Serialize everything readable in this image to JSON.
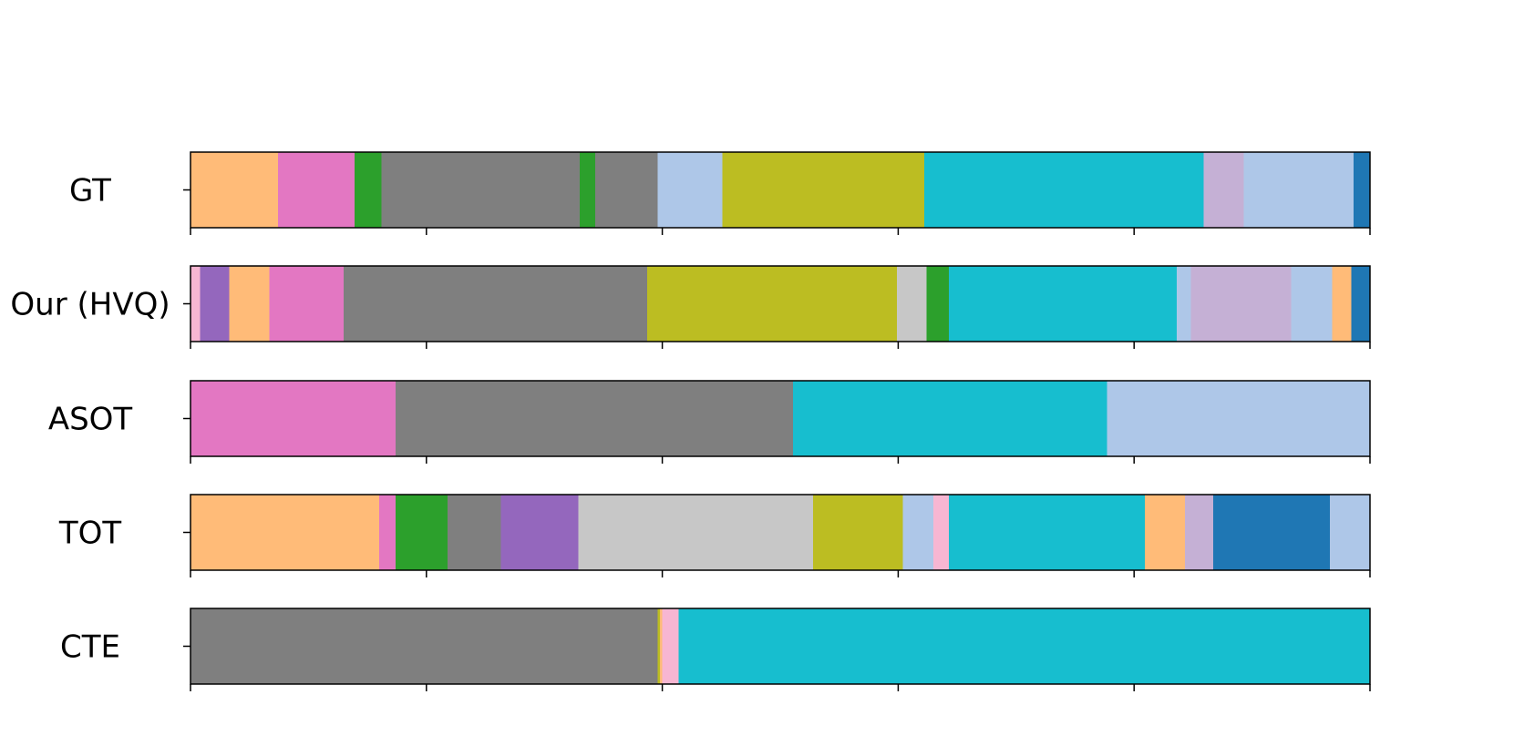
{
  "chart_data": {
    "type": "bar",
    "orientation": "horizontal-stacked-segments",
    "xlim": [
      0,
      100
    ],
    "grid": false,
    "legend": "none",
    "rows": [
      {
        "label": "GT",
        "segments": [
          {
            "start": 0.0,
            "end": 7.4,
            "color": "#ffbb78"
          },
          {
            "start": 7.4,
            "end": 13.9,
            "color": "#e377c2"
          },
          {
            "start": 13.9,
            "end": 16.2,
            "color": "#2ca02c"
          },
          {
            "start": 16.2,
            "end": 33.0,
            "color": "#7f7f7f"
          },
          {
            "start": 33.0,
            "end": 34.3,
            "color": "#2ca02c"
          },
          {
            "start": 34.3,
            "end": 39.6,
            "color": "#7f7f7f"
          },
          {
            "start": 39.6,
            "end": 45.1,
            "color": "#aec7e8"
          },
          {
            "start": 45.1,
            "end": 62.2,
            "color": "#bcbd22"
          },
          {
            "start": 62.2,
            "end": 85.9,
            "color": "#17becf"
          },
          {
            "start": 85.9,
            "end": 89.3,
            "color": "#c5b0d5"
          },
          {
            "start": 89.3,
            "end": 98.6,
            "color": "#aec7e8"
          },
          {
            "start": 98.6,
            "end": 100.0,
            "color": "#1f77b4"
          }
        ]
      },
      {
        "label": "Our (HVQ)",
        "segments": [
          {
            "start": 0.0,
            "end": 0.8,
            "color": "#f7b6d2"
          },
          {
            "start": 0.8,
            "end": 3.3,
            "color": "#9467bd"
          },
          {
            "start": 3.3,
            "end": 6.7,
            "color": "#ffbb78"
          },
          {
            "start": 6.7,
            "end": 13.0,
            "color": "#e377c2"
          },
          {
            "start": 13.0,
            "end": 38.7,
            "color": "#7f7f7f"
          },
          {
            "start": 38.7,
            "end": 59.9,
            "color": "#bcbd22"
          },
          {
            "start": 59.9,
            "end": 62.4,
            "color": "#c7c7c7"
          },
          {
            "start": 62.4,
            "end": 64.3,
            "color": "#2ca02c"
          },
          {
            "start": 64.3,
            "end": 83.6,
            "color": "#17becf"
          },
          {
            "start": 83.6,
            "end": 84.8,
            "color": "#aec7e8"
          },
          {
            "start": 84.8,
            "end": 93.3,
            "color": "#c5b0d5"
          },
          {
            "start": 93.3,
            "end": 96.8,
            "color": "#aec7e8"
          },
          {
            "start": 96.8,
            "end": 98.4,
            "color": "#ffbb78"
          },
          {
            "start": 98.4,
            "end": 100.0,
            "color": "#1f77b4"
          }
        ]
      },
      {
        "label": "ASOT",
        "segments": [
          {
            "start": 0.0,
            "end": 17.4,
            "color": "#e377c2"
          },
          {
            "start": 17.4,
            "end": 51.1,
            "color": "#7f7f7f"
          },
          {
            "start": 51.1,
            "end": 77.7,
            "color": "#17becf"
          },
          {
            "start": 77.7,
            "end": 100.0,
            "color": "#aec7e8"
          }
        ]
      },
      {
        "label": "TOT",
        "segments": [
          {
            "start": 0.0,
            "end": 16.0,
            "color": "#ffbb78"
          },
          {
            "start": 16.0,
            "end": 17.4,
            "color": "#e377c2"
          },
          {
            "start": 17.4,
            "end": 21.8,
            "color": "#2ca02c"
          },
          {
            "start": 21.8,
            "end": 26.3,
            "color": "#7f7f7f"
          },
          {
            "start": 26.3,
            "end": 32.9,
            "color": "#9467bd"
          },
          {
            "start": 32.9,
            "end": 52.8,
            "color": "#c7c7c7"
          },
          {
            "start": 52.8,
            "end": 60.4,
            "color": "#bcbd22"
          },
          {
            "start": 60.4,
            "end": 63.0,
            "color": "#aec7e8"
          },
          {
            "start": 63.0,
            "end": 64.3,
            "color": "#f7b6d2"
          },
          {
            "start": 64.3,
            "end": 80.9,
            "color": "#17becf"
          },
          {
            "start": 80.9,
            "end": 84.3,
            "color": "#ffbb78"
          },
          {
            "start": 84.3,
            "end": 86.7,
            "color": "#c5b0d5"
          },
          {
            "start": 86.7,
            "end": 96.6,
            "color": "#1f77b4"
          },
          {
            "start": 96.6,
            "end": 100.0,
            "color": "#aec7e8"
          }
        ]
      },
      {
        "label": "CTE",
        "segments": [
          {
            "start": 0.0,
            "end": 39.6,
            "color": "#7f7f7f"
          },
          {
            "start": 39.6,
            "end": 39.8,
            "color": "#bcbd22"
          },
          {
            "start": 39.8,
            "end": 40.0,
            "color": "#ffbb78"
          },
          {
            "start": 40.0,
            "end": 41.4,
            "color": "#f7b6d2"
          },
          {
            "start": 41.4,
            "end": 100.0,
            "color": "#17becf"
          }
        ]
      }
    ]
  }
}
